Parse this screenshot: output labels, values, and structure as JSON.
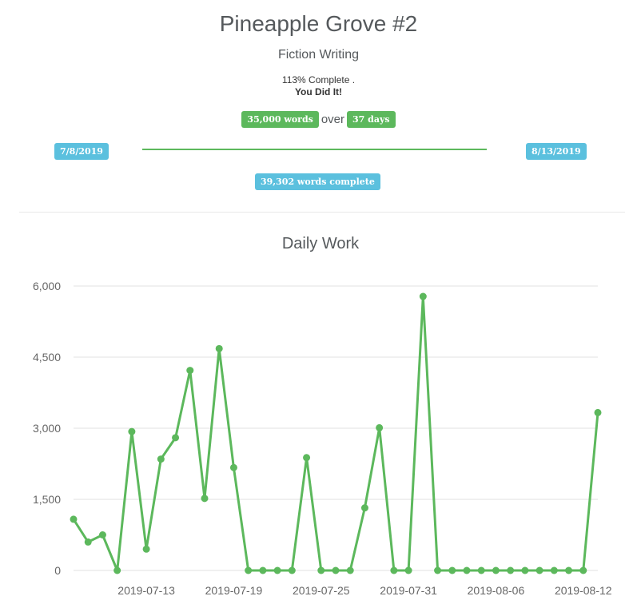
{
  "project": {
    "title": "Pineapple Grove #2",
    "category": "Fiction Writing",
    "percent_complete": "113% Complete .",
    "status": "You Did It!",
    "goal_words": "35,000 words",
    "over_label": "over",
    "goal_days": "37 days",
    "start_date": "7/8/2019",
    "end_date": "8/13/2019",
    "words_complete": "39,302 words complete"
  },
  "colors": {
    "green": "#5cb85c",
    "blue": "#5bc0de",
    "grid": "#e0e0e0",
    "text": "#55595c"
  },
  "chart_data": {
    "type": "line",
    "title": "Daily Work",
    "xlabel": "",
    "ylabel": "",
    "ylim": [
      0,
      6000
    ],
    "yticks": [
      "0",
      "1,500",
      "3,000",
      "4,500",
      "6,000"
    ],
    "ytick_values": [
      0,
      1500,
      3000,
      4500,
      6000
    ],
    "xtick_labels": [
      "2019-07-13",
      "2019-07-19",
      "2019-07-25",
      "2019-07-31",
      "2019-08-06",
      "2019-08-12"
    ],
    "x": [
      "2019-07-08",
      "2019-07-09",
      "2019-07-10",
      "2019-07-11",
      "2019-07-12",
      "2019-07-13",
      "2019-07-14",
      "2019-07-15",
      "2019-07-16",
      "2019-07-17",
      "2019-07-18",
      "2019-07-19",
      "2019-07-20",
      "2019-07-21",
      "2019-07-22",
      "2019-07-23",
      "2019-07-24",
      "2019-07-25",
      "2019-07-26",
      "2019-07-27",
      "2019-07-28",
      "2019-07-29",
      "2019-07-30",
      "2019-07-31",
      "2019-08-01",
      "2019-08-02",
      "2019-08-03",
      "2019-08-04",
      "2019-08-05",
      "2019-08-06",
      "2019-08-07",
      "2019-08-08",
      "2019-08-09",
      "2019-08-10",
      "2019-08-11",
      "2019-08-12",
      "2019-08-13"
    ],
    "series": [
      {
        "color": "#5cb85c",
        "values": [
          1080,
          600,
          750,
          0,
          2930,
          450,
          2350,
          2800,
          4220,
          1520,
          4680,
          2170,
          0,
          0,
          0,
          0,
          2380,
          0,
          0,
          0,
          1320,
          3010,
          0,
          0,
          5780,
          0,
          0,
          0,
          0,
          0,
          0,
          0,
          0,
          0,
          0,
          0,
          3330
        ]
      }
    ],
    "grid": true,
    "legend": "none"
  }
}
